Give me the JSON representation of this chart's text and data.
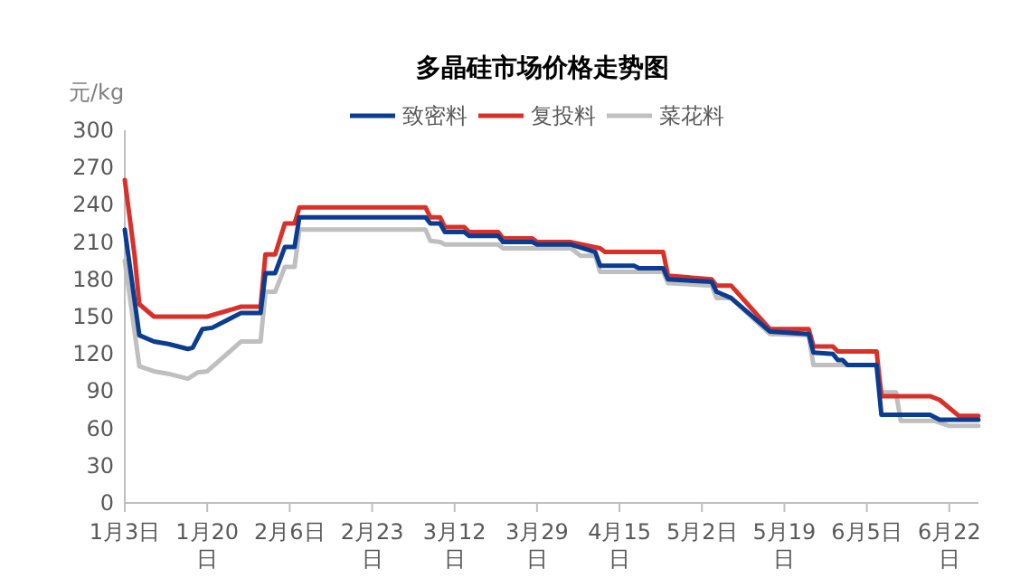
{
  "chart_data": {
    "type": "line",
    "title": "多晶硅市场价格走势图",
    "ylabel": "元/kg",
    "legend": "top",
    "grid": false,
    "marker": "none",
    "line_style": "solid",
    "xlim": [
      "--01-03",
      "--06-28"
    ],
    "xticks": [
      {
        "value": "--01-03",
        "label": "1月3日"
      },
      {
        "value": "--01-20",
        "label": "1月20日"
      },
      {
        "value": "--02-06",
        "label": "2月6日"
      },
      {
        "value": "--02-23",
        "label": "2月23日"
      },
      {
        "value": "--03-12",
        "label": "3月12日"
      },
      {
        "value": "--03-29",
        "label": "3月29日"
      },
      {
        "value": "--04-15",
        "label": "4月15日"
      },
      {
        "value": "--05-02",
        "label": "5月2日"
      },
      {
        "value": "--05-19",
        "label": "5月19日"
      },
      {
        "value": "--06-05",
        "label": "6月5日"
      },
      {
        "value": "--06-22",
        "label": "6月22日"
      }
    ],
    "ylim": [
      0,
      300
    ],
    "yticks": [
      0,
      30,
      60,
      90,
      120,
      150,
      180,
      210,
      240,
      270,
      300
    ],
    "series": [
      {
        "name": "致密料",
        "color": "#0a3d8f",
        "x": [
          "--01-03",
          "--01-06",
          "--01-09",
          "--01-12",
          "--01-16",
          "--01-17",
          "--01-19",
          "--01-21",
          "--01-27",
          "--01-31",
          "--02-01",
          "--02-03",
          "--02-05",
          "--02-07",
          "--02-08",
          "--03-06",
          "--03-07",
          "--03-09",
          "--03-10",
          "--03-14",
          "--03-15",
          "--03-21",
          "--03-22",
          "--03-28",
          "--03-29",
          "--04-05",
          "--04-10",
          "--04-11",
          "--04-18",
          "--04-19",
          "--04-24",
          "--04-25",
          "--05-04",
          "--05-05",
          "--05-08",
          "--05-16",
          "--05-24",
          "--05-25",
          "--05-29",
          "--05-30",
          "--05-31",
          "--06-01",
          "--06-07",
          "--06-08",
          "--06-18",
          "--06-20",
          "--06-28"
        ],
        "values": [
          220,
          135,
          130,
          128,
          124,
          125,
          140,
          141,
          153,
          153,
          185,
          185,
          206,
          206,
          230,
          230,
          225,
          225,
          218,
          218,
          215,
          215,
          210,
          210,
          208,
          208,
          202,
          191,
          191,
          189,
          189,
          180,
          178,
          170,
          165,
          138,
          136,
          121,
          120,
          115,
          115,
          111,
          111,
          71,
          71,
          67,
          67
        ]
      },
      {
        "name": "复投料",
        "color": "#d9302a",
        "x": [
          "--01-03",
          "--01-05",
          "--01-06",
          "--01-09",
          "--01-20",
          "--01-27",
          "--01-31",
          "--02-01",
          "--02-03",
          "--02-05",
          "--02-07",
          "--02-08",
          "--03-06",
          "--03-07",
          "--03-09",
          "--03-10",
          "--03-14",
          "--03-15",
          "--03-21",
          "--03-22",
          "--03-28",
          "--03-29",
          "--04-05",
          "--04-11",
          "--04-12",
          "--04-24",
          "--04-25",
          "--05-04",
          "--05-05",
          "--05-08",
          "--05-16",
          "--05-24",
          "--05-25",
          "--05-29",
          "--05-30",
          "--06-07",
          "--06-08",
          "--06-18",
          "--06-20",
          "--06-24",
          "--06-28"
        ],
        "values": [
          260,
          200,
          160,
          150,
          150,
          158,
          158,
          200,
          200,
          225,
          225,
          238,
          238,
          230,
          230,
          222,
          222,
          218,
          218,
          213,
          213,
          210,
          210,
          205,
          202,
          202,
          183,
          180,
          175,
          175,
          140,
          140,
          126,
          126,
          122,
          122,
          86,
          86,
          83,
          70,
          70
        ]
      },
      {
        "name": "菜花料",
        "color": "#bfbfbf",
        "x": [
          "--01-03",
          "--01-06",
          "--01-09",
          "--01-12",
          "--01-16",
          "--01-18",
          "--01-20",
          "--01-27",
          "--01-31",
          "--02-01",
          "--02-03",
          "--02-05",
          "--02-07",
          "--02-08",
          "--03-06",
          "--03-07",
          "--03-09",
          "--03-10",
          "--03-21",
          "--03-22",
          "--04-05",
          "--04-07",
          "--04-10",
          "--04-11",
          "--04-24",
          "--04-25",
          "--05-04",
          "--05-05",
          "--05-08",
          "--05-16",
          "--05-24",
          "--05-25",
          "--06-07",
          "--06-08",
          "--06-11",
          "--06-12",
          "--06-19",
          "--06-22",
          "--06-28"
        ],
        "values": [
          195,
          110,
          106,
          104,
          100,
          105,
          106,
          130,
          130,
          170,
          170,
          190,
          190,
          220,
          220,
          211,
          210,
          208,
          208,
          205,
          205,
          199,
          199,
          186,
          186,
          177,
          175,
          165,
          165,
          136,
          135,
          111,
          111,
          89,
          89,
          66,
          66,
          62,
          62
        ]
      }
    ]
  }
}
